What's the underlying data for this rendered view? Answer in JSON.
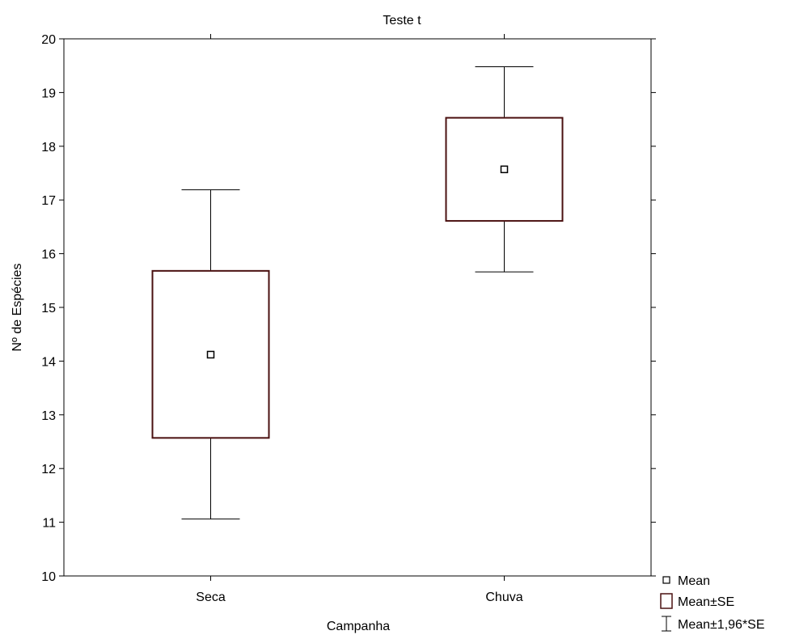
{
  "chart_data": {
    "type": "box",
    "title": "Teste t",
    "xlabel": "Campanha",
    "ylabel": "Nº de Espécies",
    "ylim": [
      10,
      20
    ],
    "yticks": [
      10,
      11,
      12,
      13,
      14,
      15,
      16,
      17,
      18,
      19,
      20
    ],
    "categories": [
      "Seca",
      "Chuva"
    ],
    "groups": [
      {
        "category": "Seca",
        "mean": 14.12,
        "se_low": 12.57,
        "se_high": 15.68,
        "ci_low": 11.06,
        "ci_high": 17.19
      },
      {
        "category": "Chuva",
        "mean": 17.57,
        "se_low": 16.61,
        "se_high": 18.53,
        "ci_low": 15.66,
        "ci_high": 19.48
      }
    ],
    "legend": {
      "position": "bottom-right",
      "entries": [
        {
          "label": "Mean",
          "symbol": "square-marker"
        },
        {
          "label": "Mean±SE",
          "symbol": "box"
        },
        {
          "label": "Mean±1,96*SE",
          "symbol": "whisker"
        }
      ]
    },
    "colors": {
      "box": "#4a1010",
      "lines": "#000000"
    },
    "grid": false
  }
}
